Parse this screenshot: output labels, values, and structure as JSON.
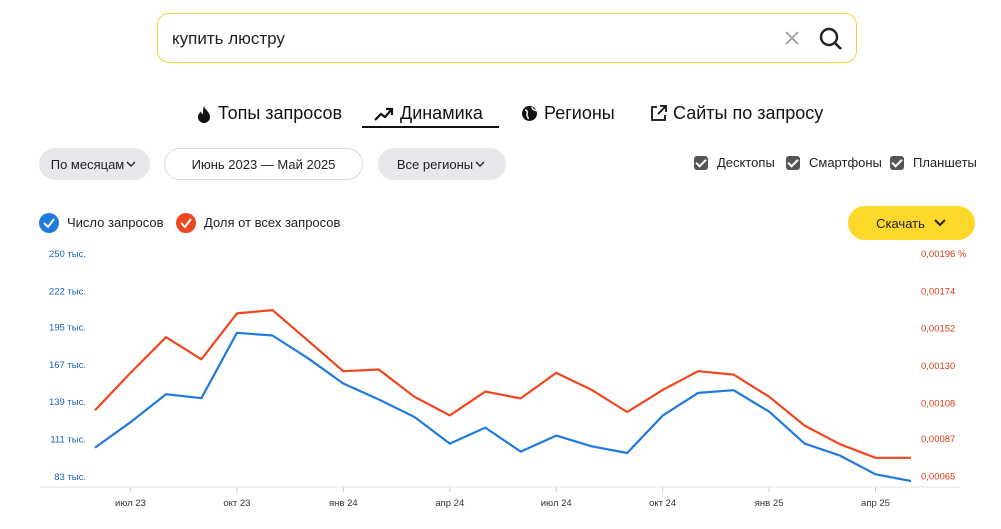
{
  "search": {
    "query": "купить люстру"
  },
  "tabs": [
    "Топы запросов",
    "Динамика",
    "Регионы",
    "Сайты по запросу"
  ],
  "filters": {
    "period": "По месяцам",
    "range": "Июнь 2023 — Май 2025",
    "region": "Все регионы"
  },
  "devices": [
    "Десктопы",
    "Смартфоны",
    "Планшеты"
  ],
  "download": "Скачать",
  "chart_data": {
    "type": "line",
    "categories": [
      null,
      "июл 23",
      null,
      null,
      "окт 23",
      null,
      null,
      "янв 24",
      null,
      null,
      "апр 24",
      null,
      null,
      "июл 24",
      null,
      null,
      "окт 24",
      null,
      null,
      "янв 25",
      null,
      null,
      "апр 25",
      null
    ],
    "series": [
      {
        "name": "Число запросов",
        "color": "#1f7ae0",
        "values": [
          105000,
          124000,
          145000,
          142000,
          191000,
          189000,
          172000,
          153000,
          141000,
          128000,
          108000,
          120000,
          102000,
          114000,
          106000,
          101000,
          129000,
          146000,
          148000,
          132000,
          108000,
          99000,
          85000,
          80000
        ]
      },
      {
        "name": "Доля от всех запросов",
        "color": "#f0461e",
        "axis": "y2",
        "values": [
          0.00104,
          0.00126,
          0.00147,
          0.00134,
          0.00161,
          0.00163,
          0.00145,
          0.00127,
          0.00128,
          0.00112,
          0.00101,
          0.00115,
          0.00111,
          0.00126,
          0.00116,
          0.00103,
          0.00116,
          0.00127,
          0.00125,
          0.00112,
          0.00095,
          0.00084,
          0.00076,
          0.00076
        ]
      }
    ],
    "ylim": [
      77000,
      250000
    ],
    "yticks": [
      {
        "value": 83000,
        "label": "83 тыс."
      },
      {
        "value": 111000,
        "label": "111 тыс."
      },
      {
        "value": 139000,
        "label": "139 тыс."
      },
      {
        "value": 167000,
        "label": "167 тыс."
      },
      {
        "value": 195000,
        "label": "195 тыс."
      },
      {
        "value": 222000,
        "label": "222 тыс."
      },
      {
        "value": 250000,
        "label": "250 тыс."
      }
    ],
    "y2lim": [
      0.0006,
      0.00196
    ],
    "y2ticks": [
      {
        "value": 0.00065,
        "label": "0,00065"
      },
      {
        "value": 0.00087,
        "label": "0,00087"
      },
      {
        "value": 0.00108,
        "label": "0,00108"
      },
      {
        "value": 0.0013,
        "label": "0,00130"
      },
      {
        "value": 0.00152,
        "label": "0,00152"
      },
      {
        "value": 0.00174,
        "label": "0,00174"
      },
      {
        "value": 0.00196,
        "label": "0,00196 %"
      }
    ]
  }
}
